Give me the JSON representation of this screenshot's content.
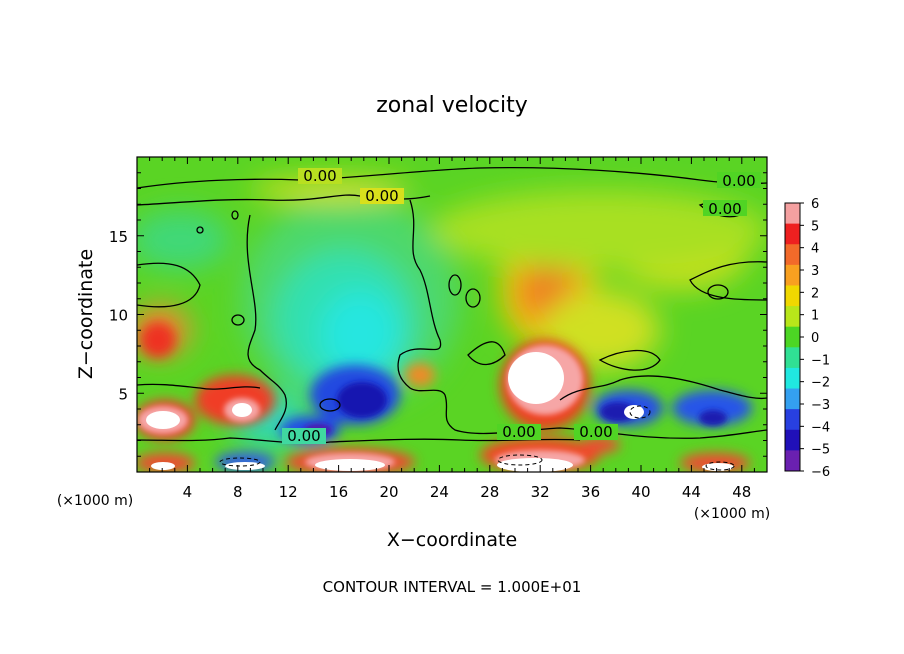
{
  "chart_data": {
    "type": "heatmap",
    "title": "zonal velocity",
    "xlabel": "X−coordinate",
    "ylabel": "Z−coordinate",
    "x_unit_note_left": "(×1000 m)",
    "x_unit_note_right": "(×1000 m)",
    "footer": "CONTOUR INTERVAL = 1.000E+01",
    "xlim": [
      0,
      50
    ],
    "ylim": [
      0,
      20
    ],
    "x_ticks": [
      4,
      8,
      12,
      16,
      20,
      24,
      28,
      32,
      36,
      40,
      44,
      48
    ],
    "x_tick_labels": [
      "4",
      "8",
      "12",
      "16",
      "20",
      "24",
      "28",
      "32",
      "36",
      "40",
      "44",
      "48"
    ],
    "y_ticks": [
      5,
      10,
      15
    ],
    "y_tick_labels": [
      "5",
      "10",
      "15"
    ],
    "colorbar": {
      "range": [
        -6,
        6
      ],
      "labels": [
        "6",
        "5",
        "4",
        "3",
        "2",
        "1",
        "0",
        "−1",
        "−2",
        "−3",
        "−4",
        "−5",
        "−6"
      ],
      "colors": [
        "#f4a0a0",
        "#ee2020",
        "#f26a2a",
        "#f8a020",
        "#f0d800",
        "#b8e61a",
        "#4cd624",
        "#30e094",
        "#20e8e0",
        "#34a0f0",
        "#2840e0",
        "#2010b8",
        "#6a20b0"
      ]
    },
    "contour_labels": [
      "0.00",
      "0.00",
      "0.00",
      "0.00",
      "0.00",
      "0.00",
      "0.00"
    ],
    "features": [
      {
        "x": 18,
        "z": 10,
        "u": -2
      },
      {
        "x": 18,
        "z": 5,
        "u": -4
      },
      {
        "x": 14,
        "z": 2.7,
        "u": -5
      },
      {
        "x": 20,
        "z": 5.5,
        "u": -5
      },
      {
        "x": 31,
        "z": 11,
        "u": 4
      },
      {
        "x": 30,
        "z": 5.5,
        "u": 7
      },
      {
        "x": 31.5,
        "z": 0.6,
        "u": 6
      },
      {
        "x": 2,
        "z": 3.3,
        "u": 7
      },
      {
        "x": 7.5,
        "z": 4.5,
        "u": 6
      },
      {
        "x": 2,
        "z": 8.5,
        "u": 4
      },
      {
        "x": 19,
        "z": 1.2,
        "u": 6
      },
      {
        "x": 24,
        "z": 13,
        "u": 1
      },
      {
        "x": 38.5,
        "z": 3.7,
        "u": -4
      },
      {
        "x": 44.5,
        "z": 3.5,
        "u": -4
      },
      {
        "x": 25,
        "z": 17,
        "u": 2
      },
      {
        "x": 12,
        "z": 18,
        "u": 0
      }
    ]
  }
}
